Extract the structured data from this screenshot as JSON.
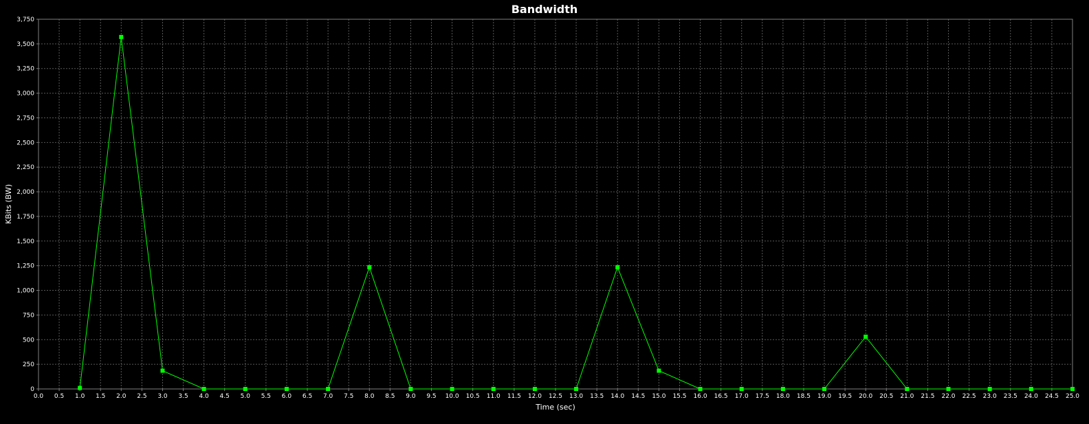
{
  "chart_data": {
    "type": "line",
    "title": "Bandwidth",
    "xlabel": "Time (sec)",
    "ylabel": "KBits (BW)",
    "xlim": [
      0,
      25
    ],
    "ylim": [
      0,
      3750
    ],
    "x_ticks": [
      "0.0",
      "0.5",
      "1.0",
      "1.5",
      "2.0",
      "2.5",
      "3.0",
      "3.5",
      "4.0",
      "4.5",
      "5.0",
      "5.5",
      "6.0",
      "6.5",
      "7.0",
      "7.5",
      "8.0",
      "8.5",
      "9.0",
      "9.5",
      "10.0",
      "10.5",
      "11.0",
      "11.5",
      "12.0",
      "12.5",
      "13.0",
      "13.5",
      "14.0",
      "14.5",
      "15.0",
      "15.5",
      "16.0",
      "16.5",
      "17.0",
      "17.5",
      "18.0",
      "18.5",
      "19.0",
      "19.5",
      "20.0",
      "20.5",
      "21.0",
      "21.5",
      "22.0",
      "22.5",
      "23.0",
      "23.5",
      "24.0",
      "24.5",
      "25.0"
    ],
    "y_ticks": [
      "0",
      "250",
      "500",
      "750",
      "1,000",
      "1,250",
      "1,500",
      "1,750",
      "2,000",
      "2,250",
      "2,500",
      "2,750",
      "3,000",
      "3,250",
      "3,500",
      "3,750"
    ],
    "grid": true,
    "series": [
      {
        "x": [
          1,
          2,
          3,
          4,
          5,
          6,
          7,
          8,
          9,
          10,
          11,
          12,
          13,
          14,
          15,
          16,
          17,
          18,
          19,
          20,
          21,
          22,
          23,
          24,
          25
        ],
        "y": [
          10,
          3570,
          185,
          0,
          0,
          0,
          0,
          1235,
          0,
          0,
          0,
          0,
          0,
          1235,
          185,
          0,
          0,
          0,
          0,
          530,
          0,
          0,
          0,
          0,
          0
        ]
      }
    ],
    "colors": {
      "background": "#000000",
      "plot_border": "#808080",
      "grid": "#5a5a5a",
      "axis_text": "#ffffff",
      "series": "#00ff00"
    }
  }
}
